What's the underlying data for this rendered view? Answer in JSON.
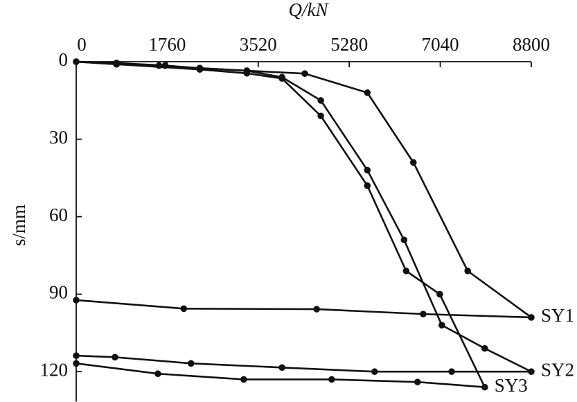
{
  "chart_data": {
    "type": "line",
    "xlabel": "Q/kN",
    "ylabel": "s/mm",
    "xlim": [
      0,
      8800
    ],
    "xticks": [
      0,
      1760,
      3520,
      5280,
      7040,
      8800
    ],
    "ylim": [
      0,
      130
    ],
    "yticks": [
      0,
      30,
      60,
      90,
      120
    ],
    "y_inverted": true,
    "x_axis_top": true,
    "color": "#111111",
    "series": [
      {
        "name": "SY1",
        "x": [
          0,
          780,
          1720,
          2390,
          3300,
          4420,
          5630,
          6520,
          7570,
          8800,
          6710,
          4650,
          2080,
          0
        ],
        "values": [
          0,
          0.5,
          1.5,
          2.5,
          3.5,
          4.6,
          12,
          39,
          81,
          99,
          97.7,
          95.8,
          95.6,
          92.3
        ]
      },
      {
        "name": "SY2",
        "x": [
          0,
          780,
          1600,
          2390,
          3300,
          3980,
          4730,
          5630,
          6340,
          7070,
          7900,
          8800,
          7260,
          5770,
          3980,
          2220,
          750,
          0
        ],
        "values": [
          0,
          1,
          1.5,
          2.5,
          3.5,
          6,
          15,
          42,
          69,
          102,
          111,
          120,
          120,
          120,
          118.4,
          116.8,
          114.4,
          113.8
        ]
      },
      {
        "name": "SY3",
        "x": [
          0,
          780,
          2390,
          3300,
          3980,
          4730,
          5630,
          6380,
          7030,
          7900,
          6600,
          4940,
          3240,
          1580,
          0
        ],
        "values": [
          0,
          1,
          3,
          4.5,
          6.5,
          21,
          48,
          81,
          90,
          126,
          124,
          123,
          123,
          120.8,
          116.8
        ]
      }
    ]
  }
}
